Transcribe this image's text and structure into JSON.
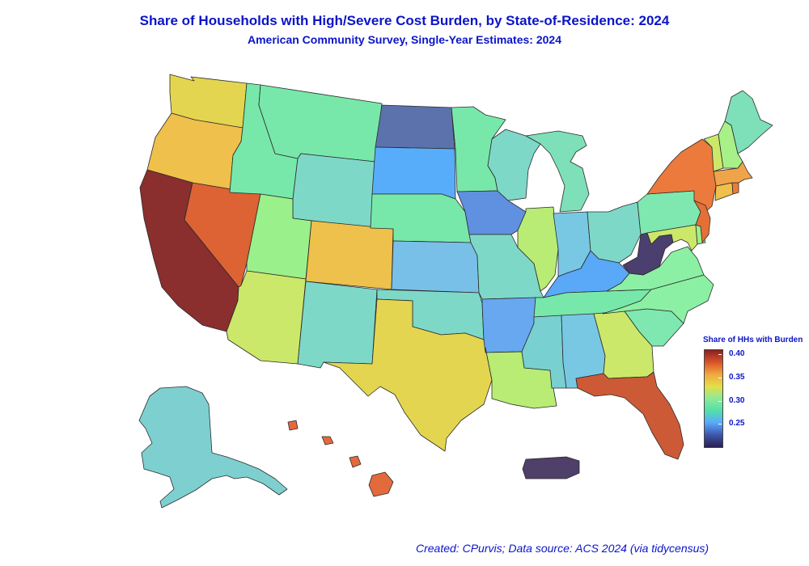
{
  "header": {
    "title": "Share of Households with High/Severe Cost Burden, by State-of-Residence: 2024",
    "subtitle": "American Community Survey, Single-Year Estimates: 2024"
  },
  "legend": {
    "title": "Share of HHs with Burden",
    "ticks": [
      "0.40",
      "0.35",
      "0.30",
      "0.25"
    ],
    "gradient_colors": [
      "#8b1f1f",
      "#d8542a",
      "#f0a840",
      "#e3df48",
      "#8ee89a",
      "#52e0a8",
      "#5aa8ff",
      "#3d56a8",
      "#2b1f55"
    ]
  },
  "states": [
    {
      "name": "Washington",
      "color": "#e3d550"
    },
    {
      "name": "Oregon",
      "color": "#f0c04c"
    },
    {
      "name": "California",
      "color": "#8b2e2e"
    },
    {
      "name": "Nevada",
      "color": "#dd6234"
    },
    {
      "name": "Idaho",
      "color": "#78e8aa"
    },
    {
      "name": "Montana",
      "color": "#78e8aa"
    },
    {
      "name": "Wyoming",
      "color": "#7ed8c8"
    },
    {
      "name": "Utah",
      "color": "#9af08a"
    },
    {
      "name": "Arizona",
      "color": "#cce86a"
    },
    {
      "name": "Colorado",
      "color": "#eec04c"
    },
    {
      "name": "New Mexico",
      "color": "#7ed8c8"
    },
    {
      "name": "North Dakota",
      "color": "#5b72ad"
    },
    {
      "name": "South Dakota",
      "color": "#58adfa"
    },
    {
      "name": "Nebraska",
      "color": "#78e8aa"
    },
    {
      "name": "Kansas",
      "color": "#78c0e8"
    },
    {
      "name": "Oklahoma",
      "color": "#7ed8c8"
    },
    {
      "name": "Texas",
      "color": "#e3d550"
    },
    {
      "name": "Minnesota",
      "color": "#78e8aa"
    },
    {
      "name": "Iowa",
      "color": "#6090e0"
    },
    {
      "name": "Missouri",
      "color": "#7ed8c8"
    },
    {
      "name": "Arkansas",
      "color": "#68a8f0"
    },
    {
      "name": "Louisiana",
      "color": "#b8ec74"
    },
    {
      "name": "Wisconsin",
      "color": "#7ed8c8"
    },
    {
      "name": "Illinois",
      "color": "#b8ec74"
    },
    {
      "name": "Michigan",
      "color": "#7ee0b8"
    },
    {
      "name": "Indiana",
      "color": "#78c8e4"
    },
    {
      "name": "Ohio",
      "color": "#7ed8c8"
    },
    {
      "name": "Kentucky",
      "color": "#5aa8f8"
    },
    {
      "name": "Tennessee",
      "color": "#78e8aa"
    },
    {
      "name": "Mississippi",
      "color": "#78d0d0"
    },
    {
      "name": "Alabama",
      "color": "#78c8e4"
    },
    {
      "name": "Georgia",
      "color": "#cce86a"
    },
    {
      "name": "Florida",
      "color": "#cc5a36"
    },
    {
      "name": "South Carolina",
      "color": "#7ee8b0"
    },
    {
      "name": "North Carolina",
      "color": "#8cf0a4"
    },
    {
      "name": "Virginia",
      "color": "#8cf0a4"
    },
    {
      "name": "West Virginia",
      "color": "#4a3f6e"
    },
    {
      "name": "Pennsylvania",
      "color": "#7ee8b0"
    },
    {
      "name": "New York",
      "color": "#ec7a3c"
    },
    {
      "name": "Maryland",
      "color": "#cce86a"
    },
    {
      "name": "Delaware",
      "color": "#9af08a"
    },
    {
      "name": "New Jersey",
      "color": "#e47036"
    },
    {
      "name": "Connecticut",
      "color": "#f0c04c"
    },
    {
      "name": "Rhode Island",
      "color": "#ec7a3c"
    },
    {
      "name": "Massachusetts",
      "color": "#f0a44a"
    },
    {
      "name": "Vermont",
      "color": "#cce86a"
    },
    {
      "name": "New Hampshire",
      "color": "#a8f088"
    },
    {
      "name": "Maine",
      "color": "#7ee0b8"
    },
    {
      "name": "Alaska",
      "color": "#7ed0d0"
    },
    {
      "name": "Hawaii",
      "color": "#e36a3c"
    },
    {
      "name": "Puerto Rico",
      "color": "#4e4068"
    }
  ],
  "footer": {
    "caption": "Created: CPurvis; Data source: ACS 2024 (via tidycensus)"
  }
}
